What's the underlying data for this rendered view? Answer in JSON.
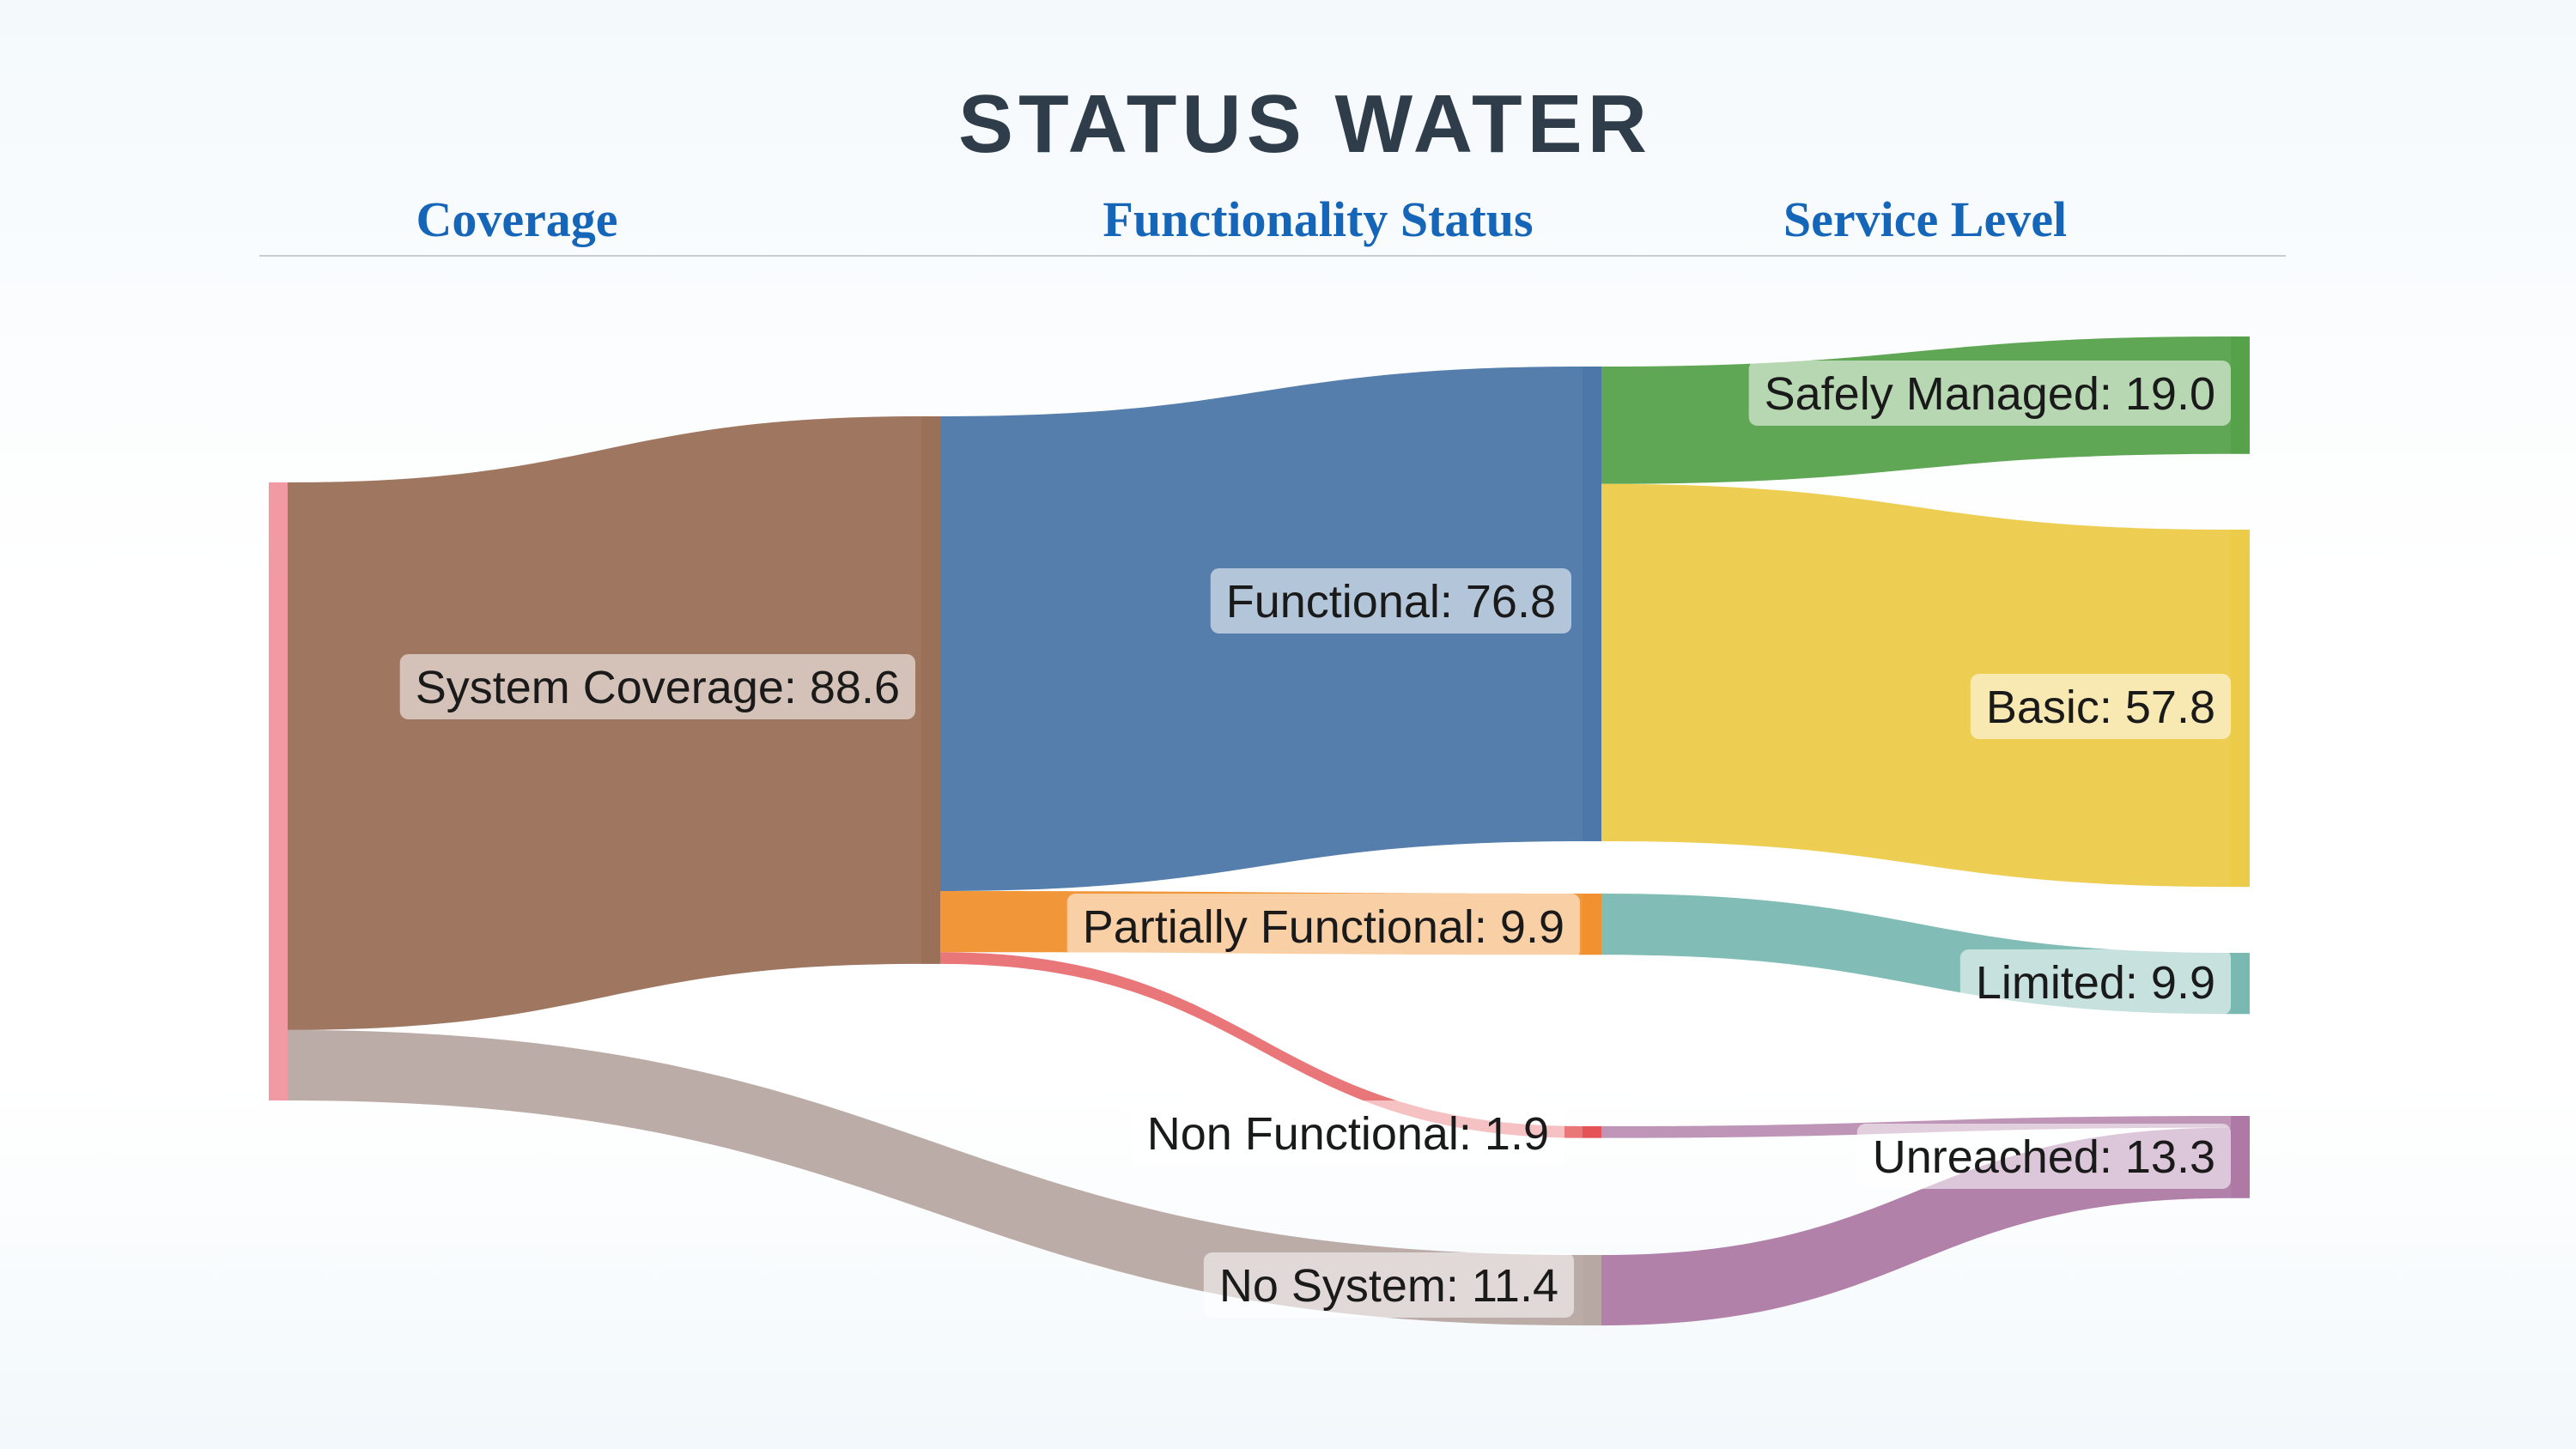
{
  "title": "STATUS WATER",
  "columns": [
    "Coverage",
    "Functionality Status",
    "Service Level"
  ],
  "colors": {
    "root": "#f29aa3",
    "system_coverage": "#9a7059",
    "no_system": "#b8a8a3",
    "functional": "#4c77a8",
    "partially_functional": "#f0902e",
    "non_functional": "#e45457",
    "safely_managed": "#56a24b",
    "basic": "#eccb49",
    "limited": "#7ab9b2",
    "unreached": "#ae7aa5"
  },
  "chart_data": {
    "type": "sankey",
    "nodes": [
      {
        "id": "root",
        "label": "",
        "column": 0
      },
      {
        "id": "system_coverage",
        "label": "System Coverage: 88.6",
        "value": 88.6,
        "column": 1
      },
      {
        "id": "no_system",
        "label": "No System: 11.4",
        "value": 11.4,
        "column": 2
      },
      {
        "id": "functional",
        "label": "Functional: 76.8",
        "value": 76.8,
        "column": 2
      },
      {
        "id": "partially_functional",
        "label": "Partially Functional: 9.9",
        "value": 9.9,
        "column": 2
      },
      {
        "id": "non_functional",
        "label": "Non Functional: 1.9",
        "value": 1.9,
        "column": 2
      },
      {
        "id": "safely_managed",
        "label": "Safely Managed: 19.0",
        "value": 19.0,
        "column": 3
      },
      {
        "id": "basic",
        "label": "Basic: 57.8",
        "value": 57.8,
        "column": 3
      },
      {
        "id": "limited",
        "label": "Limited: 9.9",
        "value": 9.9,
        "column": 3
      },
      {
        "id": "unreached",
        "label": "Unreached: 13.3",
        "value": 13.3,
        "column": 3
      }
    ],
    "links": [
      {
        "source": "root",
        "target": "system_coverage",
        "value": 88.6
      },
      {
        "source": "root",
        "target": "no_system",
        "value": 11.4
      },
      {
        "source": "system_coverage",
        "target": "functional",
        "value": 76.8
      },
      {
        "source": "system_coverage",
        "target": "partially_functional",
        "value": 9.9
      },
      {
        "source": "system_coverage",
        "target": "non_functional",
        "value": 1.9
      },
      {
        "source": "functional",
        "target": "safely_managed",
        "value": 19.0
      },
      {
        "source": "functional",
        "target": "basic",
        "value": 57.8
      },
      {
        "source": "partially_functional",
        "target": "limited",
        "value": 9.9
      },
      {
        "source": "non_functional",
        "target": "unreached",
        "value": 1.9
      },
      {
        "source": "no_system",
        "target": "unreached",
        "value": 11.4
      }
    ]
  }
}
